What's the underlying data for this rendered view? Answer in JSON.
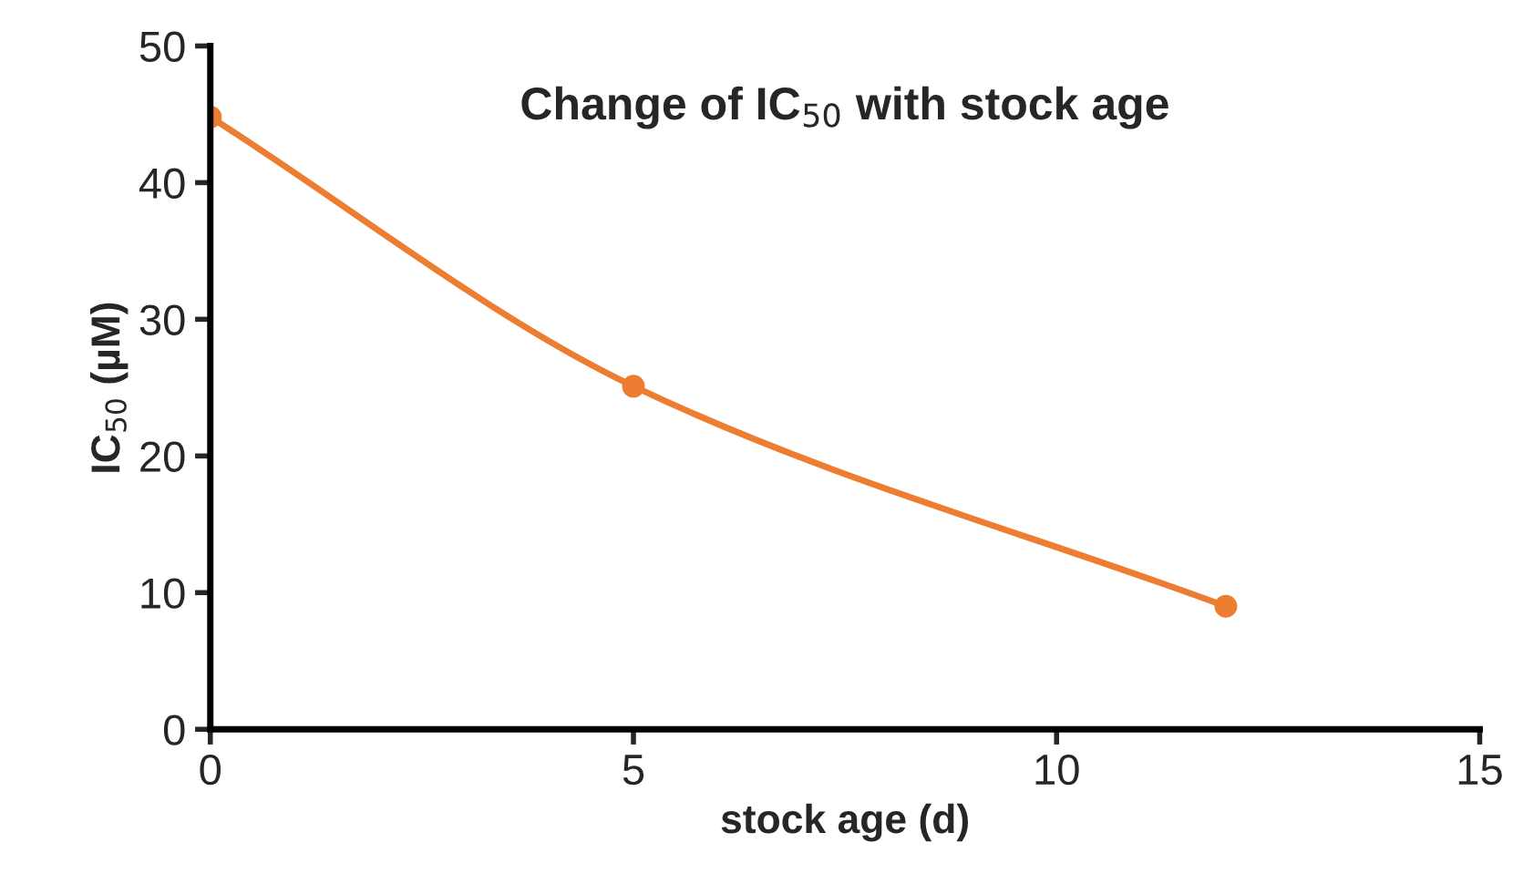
{
  "chart_data": {
    "type": "line",
    "title": "Change of IC$_{50}$ with stock age",
    "xlabel": "stock age (d)",
    "ylabel": "IC$_{50}$ (µM)",
    "x": [
      0,
      5,
      12
    ],
    "series": [
      {
        "color": "#ed7d31",
        "values": [
          44.8,
          25.1,
          9.0
        ]
      }
    ],
    "xlim": [
      0,
      15
    ],
    "ylim": [
      0,
      50
    ],
    "xticks": [
      0,
      5,
      10,
      15
    ],
    "yticks": [
      0,
      10,
      20,
      30,
      40,
      50
    ],
    "marker": "circle",
    "line_style": "solid",
    "grid": false,
    "legend": false
  }
}
